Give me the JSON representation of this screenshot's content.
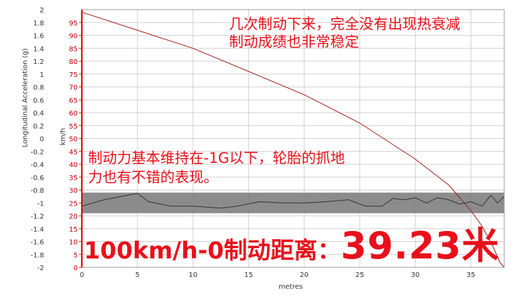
{
  "chart_data": {
    "type": "line",
    "xlabel": "metres",
    "ylabel_left": "Longitudinal Acceleration (g)",
    "ylabel_right": "km/h",
    "xlim": [
      0,
      38
    ],
    "x_ticks": [
      0,
      5,
      10,
      15,
      20,
      25,
      30,
      35
    ],
    "ylim_left": [
      -2,
      2
    ],
    "y_ticks_left": [
      2,
      1.8,
      1.6,
      1.4,
      1.2,
      1,
      0.8,
      0.6,
      0.4,
      0.2,
      0,
      -0.2,
      -0.4,
      -0.6,
      -0.8,
      -1,
      -1.2,
      -1.4,
      -1.6,
      -1.8,
      -2
    ],
    "ylim_right": [
      0,
      100
    ],
    "y_ticks_right": [
      95,
      90,
      85,
      80,
      75,
      70,
      65,
      60,
      55,
      50,
      45,
      40,
      35,
      30,
      25,
      20,
      15,
      10,
      5,
      0
    ],
    "grid": true,
    "highlight_band_right_axis": [
      21,
      29
    ],
    "series": [
      {
        "axis": "right",
        "color": "#a01818",
        "points": [
          [
            0,
            99
          ],
          [
            5,
            92
          ],
          [
            10,
            85
          ],
          [
            15,
            76
          ],
          [
            20,
            67
          ],
          [
            25,
            56
          ],
          [
            30,
            42
          ],
          [
            33,
            32
          ],
          [
            35,
            22
          ],
          [
            36,
            16
          ],
          [
            37,
            8
          ],
          [
            37.6,
            2
          ],
          [
            38,
            0
          ]
        ]
      },
      {
        "axis": "left",
        "color": "#333333",
        "points": [
          [
            0,
            -1.05
          ],
          [
            2,
            -0.95
          ],
          [
            5,
            -0.85
          ],
          [
            6,
            -0.98
          ],
          [
            8,
            -1.05
          ],
          [
            10,
            -1.05
          ],
          [
            12.5,
            -1.08
          ],
          [
            14,
            -1.05
          ],
          [
            16,
            -0.98
          ],
          [
            18,
            -1.0
          ],
          [
            20,
            -1.0
          ],
          [
            22,
            -0.98
          ],
          [
            24,
            -0.95
          ],
          [
            25.5,
            -1.05
          ],
          [
            27,
            -1.05
          ],
          [
            28,
            -0.93
          ],
          [
            29,
            -0.95
          ],
          [
            30,
            -0.92
          ],
          [
            31,
            -1.0
          ],
          [
            32,
            -0.92
          ],
          [
            33,
            -0.95
          ],
          [
            34,
            -1.02
          ],
          [
            35,
            -0.98
          ],
          [
            36,
            -1.05
          ],
          [
            36.8,
            -0.88
          ],
          [
            37.4,
            -1.0
          ],
          [
            38,
            -0.9
          ]
        ]
      }
    ]
  },
  "annotations": {
    "top_line1": "几次制动下来，完全没有出现热衰减",
    "top_line2": "制动成绩也非常稳定",
    "mid_line1": "制动力基本维持在-1G以下，轮胎的抓地",
    "mid_line2": "力也有不错的表现。",
    "result_prefix": "100km/h-0制动距离：",
    "result_value": "39.23米"
  },
  "colors": {
    "annotation": "#e8101a",
    "speed_line": "#a01818",
    "accel_line": "#333333",
    "band": "#7f7f7f",
    "grid": "#d0d0d0",
    "axis": "#e00000"
  }
}
